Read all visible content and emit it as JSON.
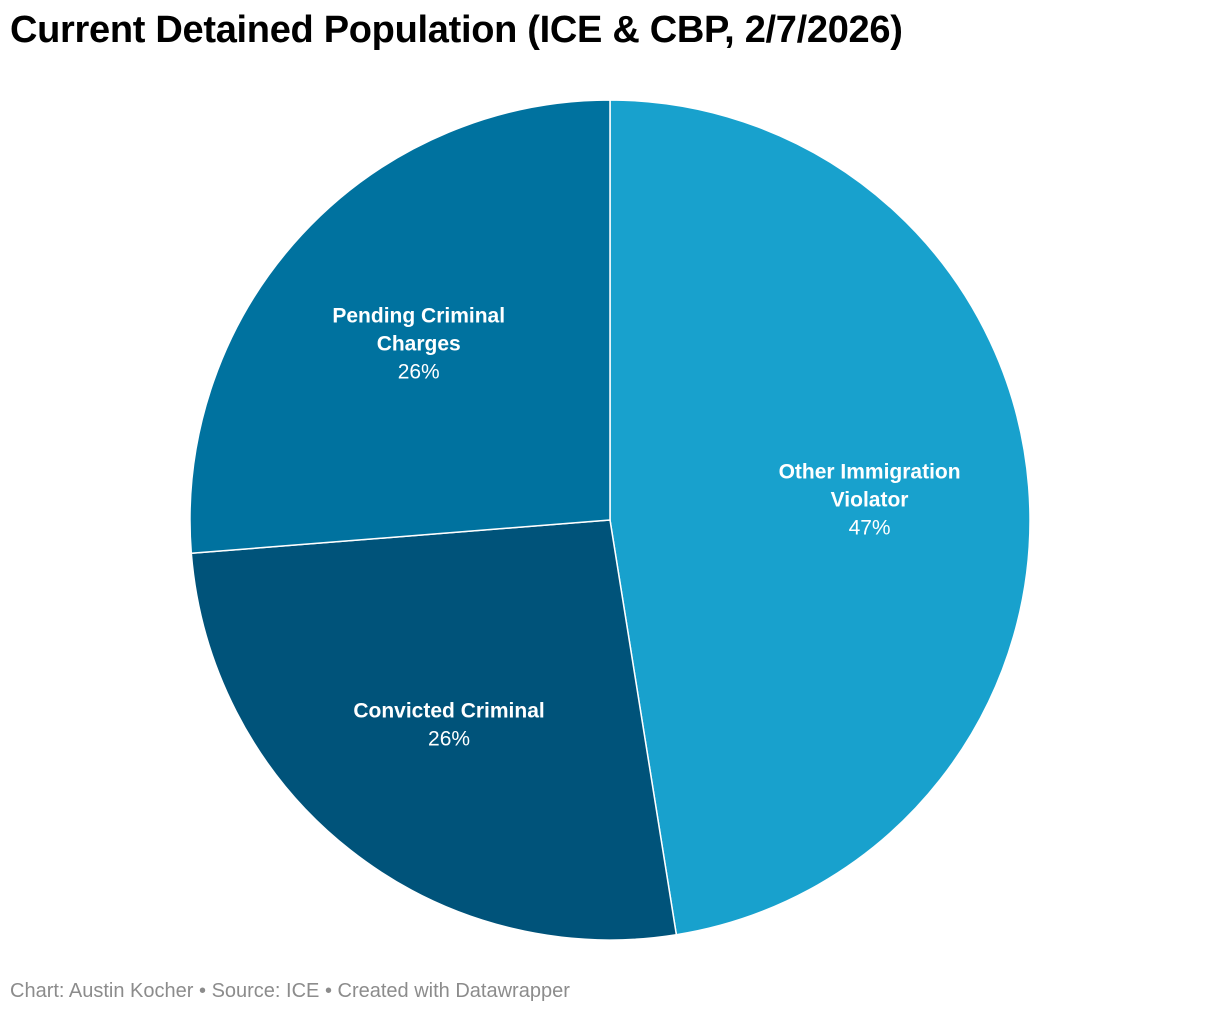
{
  "chart_data": {
    "type": "pie",
    "title": "Current Detained Population (ICE & CBP, 2/7/2026)",
    "slices": [
      {
        "label_lines": [
          "Other Immigration",
          "Violator"
        ],
        "value": 47,
        "display": "47%",
        "color": "#18a1cd"
      },
      {
        "label_lines": [
          "Convicted Criminal"
        ],
        "value": 26,
        "display": "26%",
        "color": "#00537a"
      },
      {
        "label_lines": [
          "Pending Criminal",
          "Charges"
        ],
        "value": 26,
        "display": "26%",
        "color": "#00729f"
      }
    ],
    "start": "12 o'clock",
    "direction": "clockwise"
  },
  "footer": {
    "credit": "Chart: Austin Kocher",
    "source": "Source: ICE",
    "tool": "Created with Datawrapper",
    "separator": " • "
  }
}
